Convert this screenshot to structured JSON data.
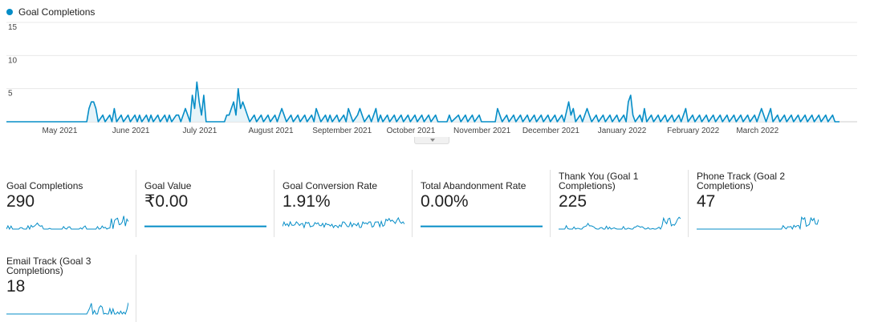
{
  "colors": {
    "series": "#058dc7",
    "fill": "#e7f4f9",
    "grid": "#e8e8e8"
  },
  "legend": {
    "label": "Goal Completions",
    "icon": "series-dot-icon"
  },
  "chart_data": {
    "type": "line",
    "title": "",
    "series": [
      {
        "name": "Goal Completions"
      }
    ],
    "ylim": [
      0,
      15
    ],
    "yticks": [
      5,
      10,
      15
    ],
    "x_labels": [
      "May 2021",
      "June 2021",
      "July 2021",
      "August 2021",
      "September 2021",
      "October 2021",
      "November 2021",
      "December 2021",
      "January 2022",
      "February 2022",
      "March 2022"
    ],
    "x_range": [
      "2021-04-13",
      "2022-04-11"
    ],
    "grid": true,
    "points": [
      [
        "2021-05-18",
        0
      ],
      [
        "2021-05-19",
        2
      ],
      [
        "2021-05-20",
        3
      ],
      [
        "2021-05-21",
        3
      ],
      [
        "2021-05-22",
        2
      ],
      [
        "2021-05-23",
        0
      ],
      [
        "2021-05-25",
        1
      ],
      [
        "2021-05-26",
        0
      ],
      [
        "2021-05-28",
        1
      ],
      [
        "2021-05-29",
        0
      ],
      [
        "2021-05-30",
        2
      ],
      [
        "2021-05-31",
        0
      ],
      [
        "2021-06-02",
        1
      ],
      [
        "2021-06-03",
        0
      ],
      [
        "2021-06-05",
        1
      ],
      [
        "2021-06-06",
        0
      ],
      [
        "2021-06-08",
        1
      ],
      [
        "2021-06-09",
        0
      ],
      [
        "2021-06-10",
        1
      ],
      [
        "2021-06-11",
        0
      ],
      [
        "2021-06-13",
        1
      ],
      [
        "2021-06-14",
        0
      ],
      [
        "2021-06-15",
        1
      ],
      [
        "2021-06-16",
        0
      ],
      [
        "2021-06-18",
        1
      ],
      [
        "2021-06-19",
        0
      ],
      [
        "2021-06-21",
        1
      ],
      [
        "2021-06-22",
        0
      ],
      [
        "2021-06-23",
        1
      ],
      [
        "2021-06-24",
        0
      ],
      [
        "2021-06-26",
        1
      ],
      [
        "2021-06-27",
        1
      ],
      [
        "2021-06-28",
        0
      ],
      [
        "2021-06-30",
        2
      ],
      [
        "2021-07-01",
        1
      ],
      [
        "2021-07-02",
        0
      ],
      [
        "2021-07-03",
        4
      ],
      [
        "2021-07-04",
        2
      ],
      [
        "2021-07-05",
        6
      ],
      [
        "2021-07-06",
        3
      ],
      [
        "2021-07-07",
        1
      ],
      [
        "2021-07-08",
        4
      ],
      [
        "2021-07-09",
        0
      ],
      [
        "2021-07-17",
        0
      ],
      [
        "2021-07-18",
        1
      ],
      [
        "2021-07-19",
        1
      ],
      [
        "2021-07-20",
        2
      ],
      [
        "2021-07-21",
        3
      ],
      [
        "2021-07-22",
        1
      ],
      [
        "2021-07-23",
        5
      ],
      [
        "2021-07-24",
        2
      ],
      [
        "2021-07-25",
        3
      ],
      [
        "2021-07-26",
        2
      ],
      [
        "2021-07-27",
        1
      ],
      [
        "2021-07-28",
        0
      ],
      [
        "2021-07-30",
        1
      ],
      [
        "2021-07-31",
        0
      ],
      [
        "2021-08-02",
        1
      ],
      [
        "2021-08-03",
        0
      ],
      [
        "2021-08-05",
        1
      ],
      [
        "2021-08-06",
        0
      ],
      [
        "2021-08-08",
        1
      ],
      [
        "2021-08-09",
        0
      ],
      [
        "2021-08-11",
        2
      ],
      [
        "2021-08-12",
        1
      ],
      [
        "2021-08-13",
        0
      ],
      [
        "2021-08-15",
        1
      ],
      [
        "2021-08-16",
        0
      ],
      [
        "2021-08-18",
        1
      ],
      [
        "2021-08-19",
        0
      ],
      [
        "2021-08-21",
        1
      ],
      [
        "2021-08-22",
        0
      ],
      [
        "2021-08-24",
        1
      ],
      [
        "2021-08-25",
        0
      ],
      [
        "2021-08-26",
        2
      ],
      [
        "2021-08-27",
        1
      ],
      [
        "2021-08-28",
        0
      ],
      [
        "2021-08-30",
        1
      ],
      [
        "2021-08-31",
        0
      ],
      [
        "2021-09-01",
        1
      ],
      [
        "2021-09-02",
        0
      ],
      [
        "2021-09-04",
        1
      ],
      [
        "2021-09-05",
        0
      ],
      [
        "2021-09-07",
        1
      ],
      [
        "2021-09-08",
        0
      ],
      [
        "2021-09-09",
        2
      ],
      [
        "2021-09-10",
        1
      ],
      [
        "2021-09-11",
        0
      ],
      [
        "2021-09-13",
        1
      ],
      [
        "2021-09-14",
        2
      ],
      [
        "2021-09-15",
        1
      ],
      [
        "2021-09-16",
        0
      ],
      [
        "2021-09-18",
        1
      ],
      [
        "2021-09-19",
        0
      ],
      [
        "2021-09-21",
        2
      ],
      [
        "2021-09-22",
        0
      ],
      [
        "2021-09-23",
        1
      ],
      [
        "2021-09-24",
        0
      ],
      [
        "2021-09-26",
        1
      ],
      [
        "2021-09-27",
        0
      ],
      [
        "2021-09-29",
        1
      ],
      [
        "2021-09-30",
        0
      ],
      [
        "2021-10-02",
        1
      ],
      [
        "2021-10-03",
        0
      ],
      [
        "2021-10-05",
        1
      ],
      [
        "2021-10-06",
        0
      ],
      [
        "2021-10-08",
        1
      ],
      [
        "2021-10-09",
        0
      ],
      [
        "2021-10-11",
        1
      ],
      [
        "2021-10-12",
        0
      ],
      [
        "2021-10-14",
        1
      ],
      [
        "2021-10-15",
        0
      ],
      [
        "2021-10-17",
        1
      ],
      [
        "2021-10-18",
        0
      ],
      [
        "2021-10-22",
        0
      ],
      [
        "2021-10-23",
        1
      ],
      [
        "2021-10-24",
        0
      ],
      [
        "2021-10-27",
        1
      ],
      [
        "2021-10-28",
        0
      ],
      [
        "2021-10-30",
        1
      ],
      [
        "2021-10-31",
        0
      ],
      [
        "2021-11-02",
        1
      ],
      [
        "2021-11-03",
        0
      ],
      [
        "2021-11-05",
        1
      ],
      [
        "2021-11-06",
        0
      ],
      [
        "2021-11-12",
        0
      ],
      [
        "2021-11-13",
        2
      ],
      [
        "2021-11-14",
        1
      ],
      [
        "2021-11-15",
        0
      ],
      [
        "2021-11-17",
        1
      ],
      [
        "2021-11-18",
        0
      ],
      [
        "2021-11-20",
        1
      ],
      [
        "2021-11-21",
        0
      ],
      [
        "2021-11-23",
        1
      ],
      [
        "2021-11-24",
        0
      ],
      [
        "2021-11-26",
        1
      ],
      [
        "2021-11-27",
        0
      ],
      [
        "2021-11-29",
        1
      ],
      [
        "2021-11-30",
        0
      ],
      [
        "2021-12-02",
        1
      ],
      [
        "2021-12-03",
        0
      ],
      [
        "2021-12-05",
        1
      ],
      [
        "2021-12-06",
        0
      ],
      [
        "2021-12-08",
        1
      ],
      [
        "2021-12-09",
        0
      ],
      [
        "2021-12-11",
        1
      ],
      [
        "2021-12-12",
        0
      ],
      [
        "2021-12-14",
        3
      ],
      [
        "2021-12-15",
        1
      ],
      [
        "2021-12-16",
        2
      ],
      [
        "2021-12-17",
        0
      ],
      [
        "2021-12-19",
        1
      ],
      [
        "2021-12-20",
        0
      ],
      [
        "2021-12-22",
        2
      ],
      [
        "2021-12-23",
        1
      ],
      [
        "2021-12-24",
        0
      ],
      [
        "2021-12-26",
        1
      ],
      [
        "2021-12-27",
        0
      ],
      [
        "2021-12-29",
        1
      ],
      [
        "2021-12-30",
        0
      ],
      [
        "2022-01-01",
        1
      ],
      [
        "2022-01-02",
        0
      ],
      [
        "2022-01-04",
        1
      ],
      [
        "2022-01-05",
        0
      ],
      [
        "2022-01-07",
        1
      ],
      [
        "2022-01-08",
        0
      ],
      [
        "2022-01-09",
        3
      ],
      [
        "2022-01-10",
        4
      ],
      [
        "2022-01-11",
        1
      ],
      [
        "2022-01-12",
        0
      ],
      [
        "2022-01-14",
        1
      ],
      [
        "2022-01-15",
        0
      ],
      [
        "2022-01-16",
        2
      ],
      [
        "2022-01-17",
        0
      ],
      [
        "2022-01-19",
        1
      ],
      [
        "2022-01-20",
        0
      ],
      [
        "2022-01-22",
        1
      ],
      [
        "2022-01-23",
        0
      ],
      [
        "2022-01-25",
        1
      ],
      [
        "2022-01-26",
        0
      ],
      [
        "2022-01-28",
        1
      ],
      [
        "2022-01-29",
        0
      ],
      [
        "2022-01-31",
        1
      ],
      [
        "2022-02-01",
        0
      ],
      [
        "2022-02-03",
        2
      ],
      [
        "2022-02-04",
        0
      ],
      [
        "2022-02-06",
        1
      ],
      [
        "2022-02-07",
        0
      ],
      [
        "2022-02-09",
        1
      ],
      [
        "2022-02-10",
        0
      ],
      [
        "2022-02-12",
        1
      ],
      [
        "2022-02-13",
        0
      ],
      [
        "2022-02-15",
        1
      ],
      [
        "2022-02-16",
        0
      ],
      [
        "2022-02-18",
        1
      ],
      [
        "2022-02-19",
        0
      ],
      [
        "2022-02-21",
        1
      ],
      [
        "2022-02-22",
        0
      ],
      [
        "2022-02-24",
        1
      ],
      [
        "2022-02-25",
        0
      ],
      [
        "2022-02-27",
        1
      ],
      [
        "2022-02-28",
        0
      ],
      [
        "2022-03-02",
        1
      ],
      [
        "2022-03-03",
        0
      ],
      [
        "2022-03-05",
        1
      ],
      [
        "2022-03-06",
        0
      ],
      [
        "2022-03-08",
        2
      ],
      [
        "2022-03-09",
        1
      ],
      [
        "2022-03-10",
        0
      ],
      [
        "2022-03-12",
        2
      ],
      [
        "2022-03-13",
        0
      ],
      [
        "2022-03-15",
        1
      ],
      [
        "2022-03-16",
        0
      ],
      [
        "2022-03-18",
        1
      ],
      [
        "2022-03-19",
        0
      ],
      [
        "2022-03-21",
        1
      ],
      [
        "2022-03-22",
        0
      ],
      [
        "2022-03-24",
        1
      ],
      [
        "2022-03-25",
        0
      ],
      [
        "2022-03-27",
        1
      ],
      [
        "2022-03-28",
        0
      ],
      [
        "2022-03-30",
        1
      ],
      [
        "2022-03-31",
        0
      ],
      [
        "2022-04-02",
        1
      ],
      [
        "2022-04-03",
        0
      ],
      [
        "2022-04-05",
        1
      ],
      [
        "2022-04-06",
        0
      ],
      [
        "2022-04-08",
        1
      ],
      [
        "2022-04-09",
        0
      ]
    ]
  },
  "cards": [
    {
      "label": "Goal Completions",
      "value": "290",
      "spark": "spiky",
      "seed": 1
    },
    {
      "label": "Goal Value",
      "value": "₹0.00",
      "spark": "flat",
      "seed": 2
    },
    {
      "label": "Goal Conversion Rate",
      "value": "1.91%",
      "spark": "dense",
      "seed": 3
    },
    {
      "label": "Total Abandonment Rate",
      "value": "0.00%",
      "spark": "flat",
      "seed": 4
    },
    {
      "label": "Thank You (Goal 1 Completions)",
      "value": "225",
      "spark": "spiky",
      "seed": 5
    },
    {
      "label": "Phone Track (Goal 2 Completions)",
      "value": "47",
      "spark": "late",
      "seed": 6
    },
    {
      "label": "Email Track (Goal 3 Completions)",
      "value": "18",
      "spark": "late-sparse",
      "seed": 7
    }
  ]
}
